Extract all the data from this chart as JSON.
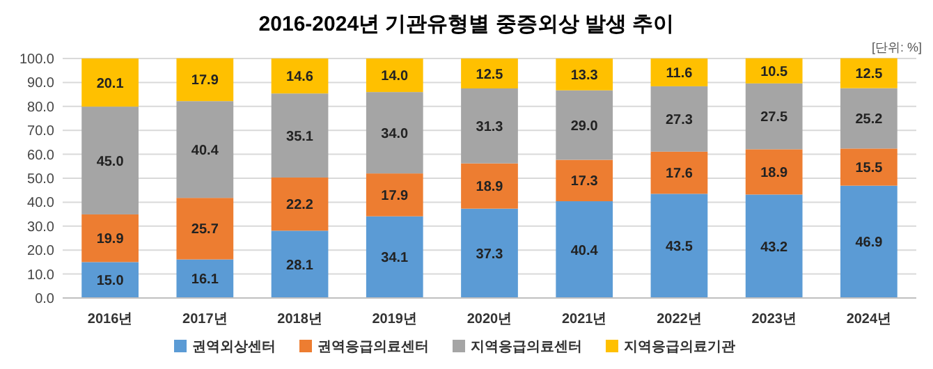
{
  "chart_data": {
    "type": "bar",
    "stacked": true,
    "title": "2016-2024년 기관유형별 중증외상 발생 추이",
    "annotations": [
      "[단위: %]"
    ],
    "categories": [
      "2016년",
      "2017년",
      "2018년",
      "2019년",
      "2020년",
      "2021년",
      "2022년",
      "2023년",
      "2024년"
    ],
    "series": [
      {
        "name": "권역외상센터",
        "color": "#5b9bd5",
        "values": [
          15.0,
          16.1,
          28.1,
          34.1,
          37.3,
          40.4,
          43.5,
          43.2,
          46.9
        ],
        "value_labels": [
          "15.0",
          "16.1",
          "28.1",
          "34.1",
          "37.3",
          "40.4",
          "43.5",
          "43.2",
          "46.9"
        ]
      },
      {
        "name": "권역응급의료센터",
        "color": "#ed7d31",
        "values": [
          19.9,
          25.7,
          22.2,
          17.9,
          18.9,
          17.3,
          17.6,
          18.9,
          15.5
        ],
        "value_labels": [
          "19.9",
          "25.7",
          "22.2",
          "17.9",
          "18.9",
          "17.3",
          "17.6",
          "18.9",
          "15.5"
        ]
      },
      {
        "name": "지역응급의료센터",
        "color": "#a5a5a5",
        "values": [
          45.0,
          40.4,
          35.1,
          34.0,
          31.3,
          29.0,
          27.3,
          27.5,
          25.2
        ],
        "value_labels": [
          "45.0",
          "40.4",
          "35.1",
          "34.0",
          "31.3",
          "29.0",
          "27.3",
          "27.5",
          "25.2"
        ]
      },
      {
        "name": "지역응급의료기관",
        "color": "#ffc000",
        "values": [
          20.1,
          17.9,
          14.6,
          14.0,
          12.5,
          13.3,
          11.6,
          10.5,
          12.5
        ],
        "value_labels": [
          "20.1",
          "17.9",
          "14.6",
          "14.0",
          "12.5",
          "13.3",
          "11.6",
          "10.5",
          "12.5"
        ]
      }
    ],
    "ylim": [
      0,
      100
    ],
    "yticks": [
      {
        "value": 0,
        "label": "0.0"
      },
      {
        "value": 10,
        "label": "10.0"
      },
      {
        "value": 20,
        "label": "20.0"
      },
      {
        "value": 30,
        "label": "30.0"
      },
      {
        "value": 40,
        "label": "40.0"
      },
      {
        "value": 50,
        "label": "50.0"
      },
      {
        "value": 60,
        "label": "60.0"
      },
      {
        "value": 70,
        "label": "70.0"
      },
      {
        "value": 80,
        "label": "80.0"
      },
      {
        "value": 90,
        "label": "90.0"
      },
      {
        "value": 100,
        "label": "100.0"
      }
    ],
    "grid": "y",
    "legend": "bottom"
  }
}
